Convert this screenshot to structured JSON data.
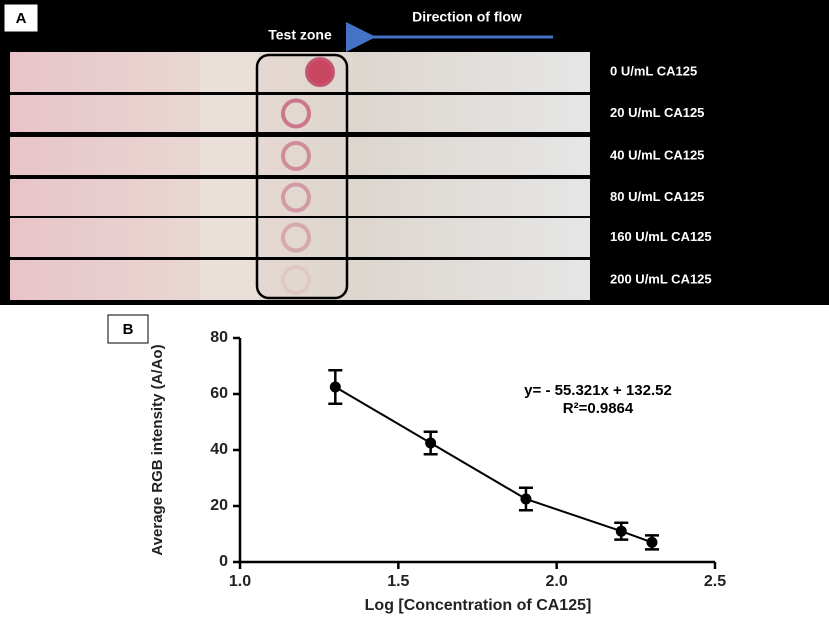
{
  "panel_a": {
    "label": "A",
    "test_zone": "Test zone",
    "direction": "Direction of flow",
    "strip_labels": [
      "0  U/mL CA125",
      "20  U/mL CA125",
      "40  U/mL CA125",
      "80  U/mL CA125",
      "160  U/mL CA125",
      "200  U/mL CA125"
    ]
  },
  "chart_data": {
    "type": "line",
    "panel_label": "B",
    "x_label": "Log [Concentration of CA125]",
    "y_label": "Average RGB intensity (A/Ao)",
    "annotations": [
      "y= - 55.321x + 132.52",
      "R²=0.9864"
    ],
    "series": [
      {
        "color": "#000000",
        "x": [
          1.301,
          1.602,
          1.903,
          2.204,
          2.301
        ],
        "values": [
          62.5,
          42.5,
          22.5,
          11,
          7
        ],
        "errors": [
          6,
          4,
          4,
          3,
          2.5
        ]
      }
    ],
    "xlim": [
      1.0,
      2.5
    ],
    "ylim": [
      0,
      80
    ],
    "xticks": [
      {
        "value": 1.0,
        "label": "1.0"
      },
      {
        "value": 1.5,
        "label": "1.5"
      },
      {
        "value": 2.0,
        "label": "2.0"
      },
      {
        "value": 2.5,
        "label": "2.5"
      }
    ],
    "yticks": [
      0,
      20,
      40,
      60,
      80
    ],
    "grid": false
  }
}
